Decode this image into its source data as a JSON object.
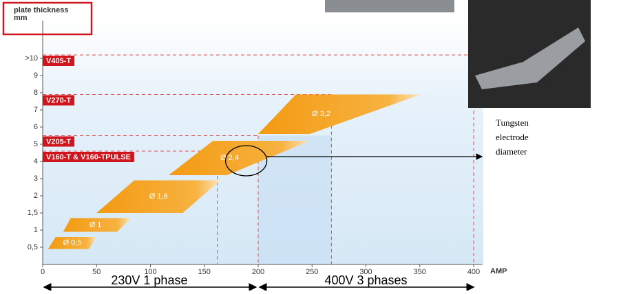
{
  "chart_data": {
    "type": "band",
    "title": "plate thickness\nmm",
    "x_label": "AMP",
    "xlim": [
      0,
      408
    ],
    "xticks": [
      0,
      50,
      100,
      150,
      200,
      250,
      300,
      350,
      400
    ],
    "ylim": [
      0,
      14.2
    ],
    "yticks": [
      {
        "value": 1,
        "label": "0,5"
      },
      {
        "value": 2,
        "label": "1"
      },
      {
        "value": 3,
        "label": "1,5"
      },
      {
        "value": 4,
        "label": "2"
      },
      {
        "value": 5,
        "label": "3"
      },
      {
        "value": 6,
        "label": "4"
      },
      {
        "value": 7,
        "label": "5"
      },
      {
        "value": 8,
        "label": "6"
      },
      {
        "value": 9,
        "label": "7"
      },
      {
        "value": 10,
        "label": "8"
      },
      {
        "value": 11,
        "label": "9"
      },
      {
        "value": 12,
        "label": ">10"
      }
    ],
    "color": "#f5a623",
    "bands": [
      {
        "label": "Ø 0,5",
        "bottom": [
          5,
          43
        ],
        "top": [
          12,
          50
        ],
        "levels": [
          0.9,
          1.6
        ]
      },
      {
        "label": "Ø 1",
        "bottom": [
          19,
          69
        ],
        "top": [
          26,
          82
        ],
        "levels": [
          1.9,
          2.7
        ]
      },
      {
        "label": "Ø 1,6",
        "bottom": [
          50,
          130
        ],
        "top": [
          85,
          165
        ],
        "levels": [
          3.0,
          4.9
        ]
      },
      {
        "label": "Ø 2,4",
        "bottom": [
          117,
          171
        ],
        "top": [
          158,
          248
        ],
        "levels": [
          5.2,
          7.2
        ]
      },
      {
        "label": "Ø 3,2",
        "bottom": [
          200,
          248
        ],
        "top": [
          235,
          351
        ],
        "levels": [
          7.6,
          9.9
        ]
      }
    ],
    "models": [
      {
        "name": "V405-T",
        "amp": 400,
        "level": 12.2
      },
      {
        "name": "V270-T",
        "amp": 268,
        "level": 9.9
      },
      {
        "name": "V205-T",
        "amp": 200,
        "level": 7.5
      },
      {
        "name": "V160-T & V160-TPULSE",
        "amp": 162,
        "level": 6.6
      }
    ],
    "phases": [
      {
        "label": "230V 1 phase",
        "range": [
          0,
          198
        ]
      },
      {
        "label": "400V 3 phases",
        "range": [
          200,
          400
        ]
      }
    ],
    "annotation": "Tungsten\nelectrode\ndiameter"
  }
}
